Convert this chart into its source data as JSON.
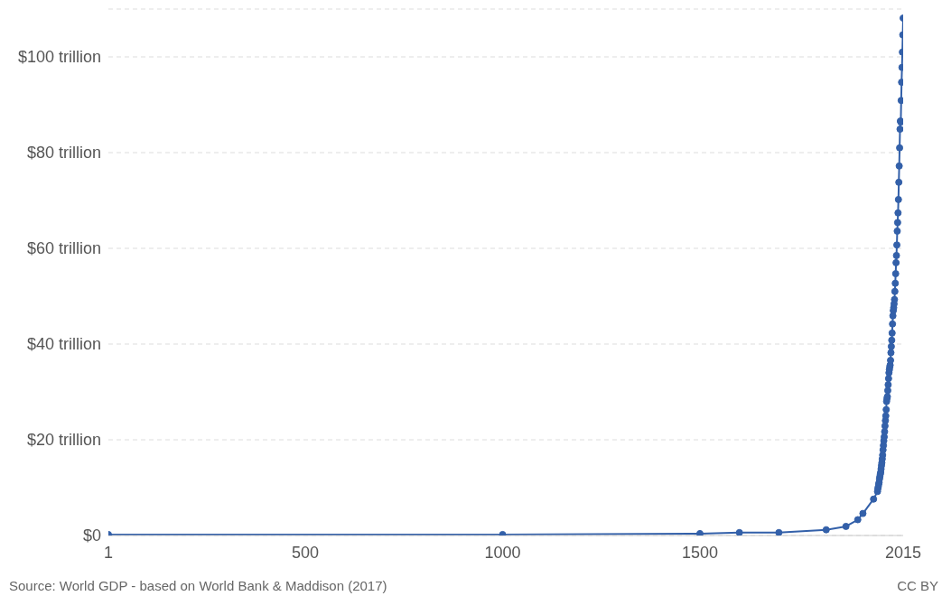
{
  "chart_data": {
    "type": "line",
    "x": [
      1,
      1000,
      1500,
      1600,
      1700,
      1820,
      1870,
      1900,
      1913,
      1940,
      1950,
      1951,
      1952,
      1953,
      1954,
      1955,
      1956,
      1957,
      1958,
      1959,
      1960,
      1961,
      1962,
      1963,
      1964,
      1965,
      1966,
      1967,
      1968,
      1969,
      1970,
      1971,
      1972,
      1973,
      1974,
      1975,
      1976,
      1977,
      1978,
      1979,
      1980,
      1981,
      1982,
      1983,
      1984,
      1985,
      1986,
      1987,
      1988,
      1989,
      1990,
      1991,
      1992,
      1993,
      1994,
      1995,
      1996,
      1997,
      1998,
      1999,
      2000,
      2001,
      2002,
      2003,
      2004,
      2005,
      2006,
      2007,
      2008,
      2009,
      2010,
      2011,
      2012,
      2013,
      2014,
      2015
    ],
    "series": [
      {
        "color": "#3360a9",
        "values": [
          0.2,
          0.2,
          0.4,
          0.6,
          0.6,
          1.2,
          1.9,
          3.3,
          4.6,
          7.6,
          9.2,
          9.8,
          10.2,
          10.7,
          11.1,
          11.8,
          12.3,
          12.8,
          13.2,
          13.9,
          14.6,
          15.2,
          16.0,
          16.8,
          17.9,
          18.8,
          19.8,
          20.6,
          21.7,
          22.9,
          24.0,
          25.0,
          26.3,
          28.0,
          28.6,
          29.0,
          30.3,
          31.5,
          32.8,
          34.0,
          34.6,
          35.2,
          35.6,
          36.6,
          38.2,
          39.5,
          40.8,
          42.3,
          44.2,
          45.9,
          47.0,
          47.6,
          48.4,
          49.3,
          51.0,
          52.7,
          54.7,
          57.0,
          58.5,
          60.7,
          63.6,
          65.4,
          67.4,
          70.2,
          73.8,
          77.2,
          81.0,
          84.9,
          86.6,
          86.4,
          90.9,
          94.7,
          97.8,
          101.0,
          104.6,
          108.1
        ]
      }
    ],
    "xlim": [
      1,
      2015
    ],
    "xticks": [
      1,
      500,
      1000,
      1500,
      2015
    ],
    "ylim": [
      0,
      110
    ],
    "yticks": [
      {
        "value": 0,
        "label": "$0"
      },
      {
        "value": 20,
        "label": "$20 trillion"
      },
      {
        "value": 40,
        "label": "$40 trillion"
      },
      {
        "value": 60,
        "label": "$60 trillion"
      },
      {
        "value": 80,
        "label": "$80 trillion"
      },
      {
        "value": 100,
        "label": "$100 trillion"
      }
    ],
    "grid": "y",
    "legend": false,
    "marker": "circle",
    "line_style": "solid",
    "annotations": [
      "Source: World GDP - based on World Bank & Maddison (2017)",
      "CC BY"
    ]
  }
}
